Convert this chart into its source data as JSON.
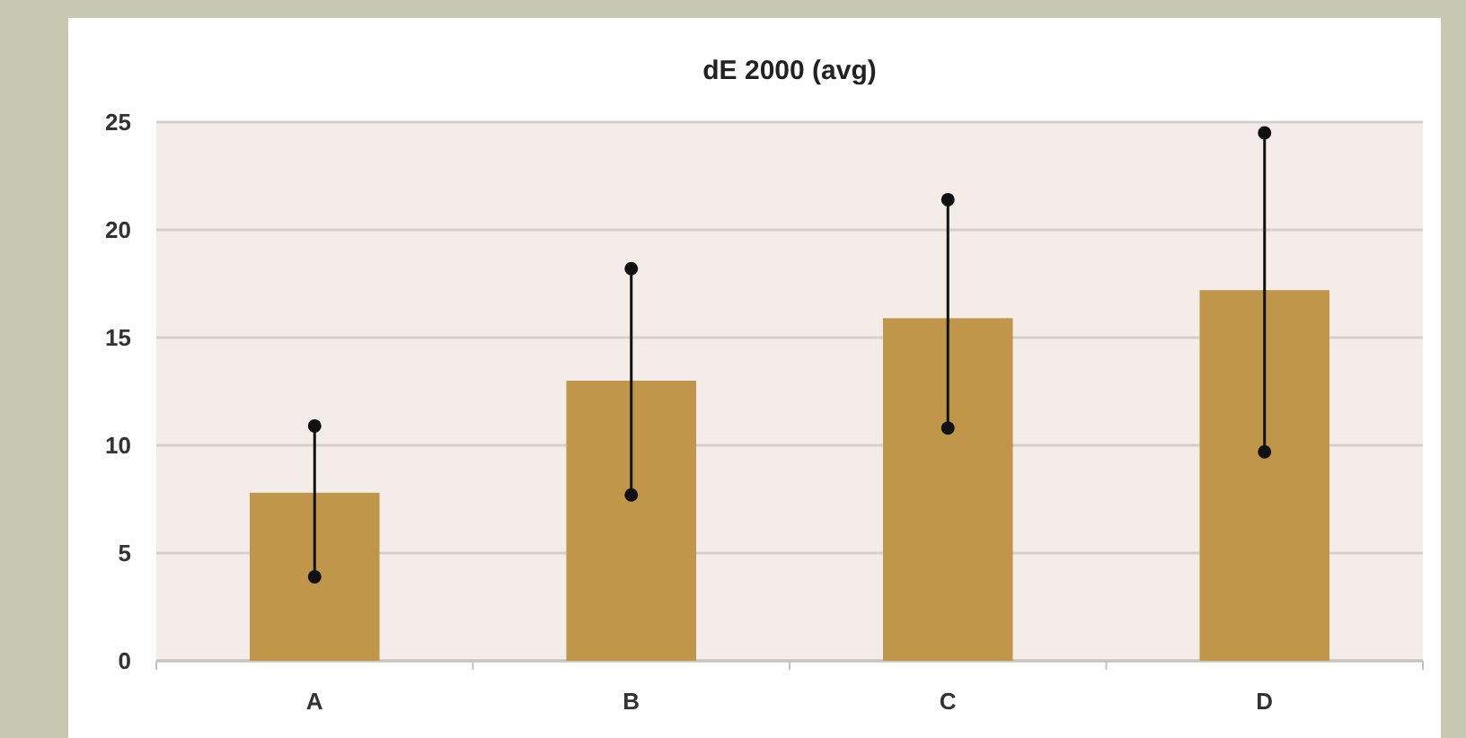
{
  "chart_data": {
    "type": "bar",
    "title": "dE 2000 (avg)",
    "categories": [
      "A",
      "B",
      "C",
      "D"
    ],
    "values": [
      7.8,
      13.0,
      15.9,
      17.2
    ],
    "errors": [
      [
        3.9,
        10.9
      ],
      [
        7.7,
        18.2
      ],
      [
        10.8,
        21.4
      ],
      [
        9.7,
        24.5
      ]
    ],
    "color": "#c0964a",
    "ylim": [
      0,
      25
    ],
    "yticks": [
      0,
      5,
      10,
      15,
      20,
      25
    ],
    "grid": "y"
  }
}
